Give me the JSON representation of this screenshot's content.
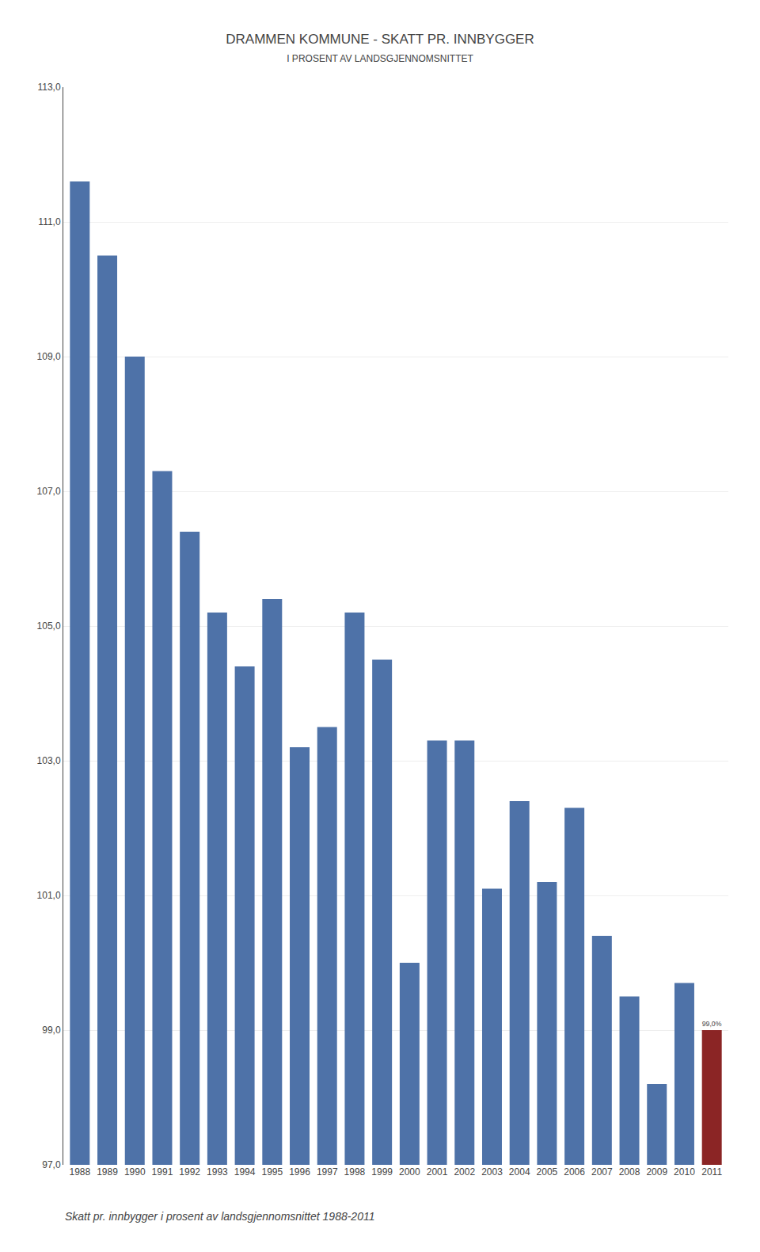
{
  "chart_data": {
    "type": "bar",
    "title": "DRAMMEN KOMMUNE - SKATT PR. INNBYGGER",
    "subtitle": "I PROSENT AV LANDSGJENNOMSNITTET",
    "annotations": [
      "Skatt pr. innbygger i prosent av landsgjennomsnittet 1988-2011"
    ],
    "categories": [
      "1988",
      "1989",
      "1990",
      "1991",
      "1992",
      "1993",
      "1994",
      "1995",
      "1996",
      "1997",
      "1998",
      "1999",
      "2000",
      "2001",
      "2002",
      "2003",
      "2004",
      "2005",
      "2006",
      "2007",
      "2008",
      "2009",
      "2010",
      "2011"
    ],
    "values": [
      111.6,
      110.5,
      109.0,
      107.3,
      106.4,
      105.2,
      104.4,
      105.4,
      103.2,
      103.5,
      105.2,
      104.5,
      100.0,
      103.3,
      103.3,
      101.1,
      102.4,
      101.2,
      102.3,
      100.4,
      99.5,
      98.2,
      99.7,
      99.0
    ],
    "value_labels": [
      null,
      null,
      null,
      null,
      null,
      null,
      null,
      null,
      null,
      null,
      null,
      null,
      null,
      null,
      null,
      null,
      null,
      null,
      null,
      null,
      null,
      null,
      null,
      "99,0%"
    ],
    "colors": [
      "#4E72A8",
      "#4E72A8",
      "#4E72A8",
      "#4E72A8",
      "#4E72A8",
      "#4E72A8",
      "#4E72A8",
      "#4E72A8",
      "#4E72A8",
      "#4E72A8",
      "#4E72A8",
      "#4E72A8",
      "#4E72A8",
      "#4E72A8",
      "#4E72A8",
      "#4E72A8",
      "#4E72A8",
      "#4E72A8",
      "#4E72A8",
      "#4E72A8",
      "#4E72A8",
      "#4E72A8",
      "#4E72A8",
      "#8B2525"
    ],
    "ylim": [
      97.0,
      113.0
    ],
    "yticks": [
      {
        "value": 97.0,
        "label": "97,0"
      },
      {
        "value": 99.0,
        "label": "99,0"
      },
      {
        "value": 101.0,
        "label": "101,0"
      },
      {
        "value": 103.0,
        "label": "103,0"
      },
      {
        "value": 105.0,
        "label": "105,0"
      },
      {
        "value": 107.0,
        "label": "107,0"
      },
      {
        "value": 109.0,
        "label": "109,0"
      },
      {
        "value": 111.0,
        "label": "111,0"
      },
      {
        "value": 113.0,
        "label": "113,0"
      }
    ],
    "grid": true
  }
}
